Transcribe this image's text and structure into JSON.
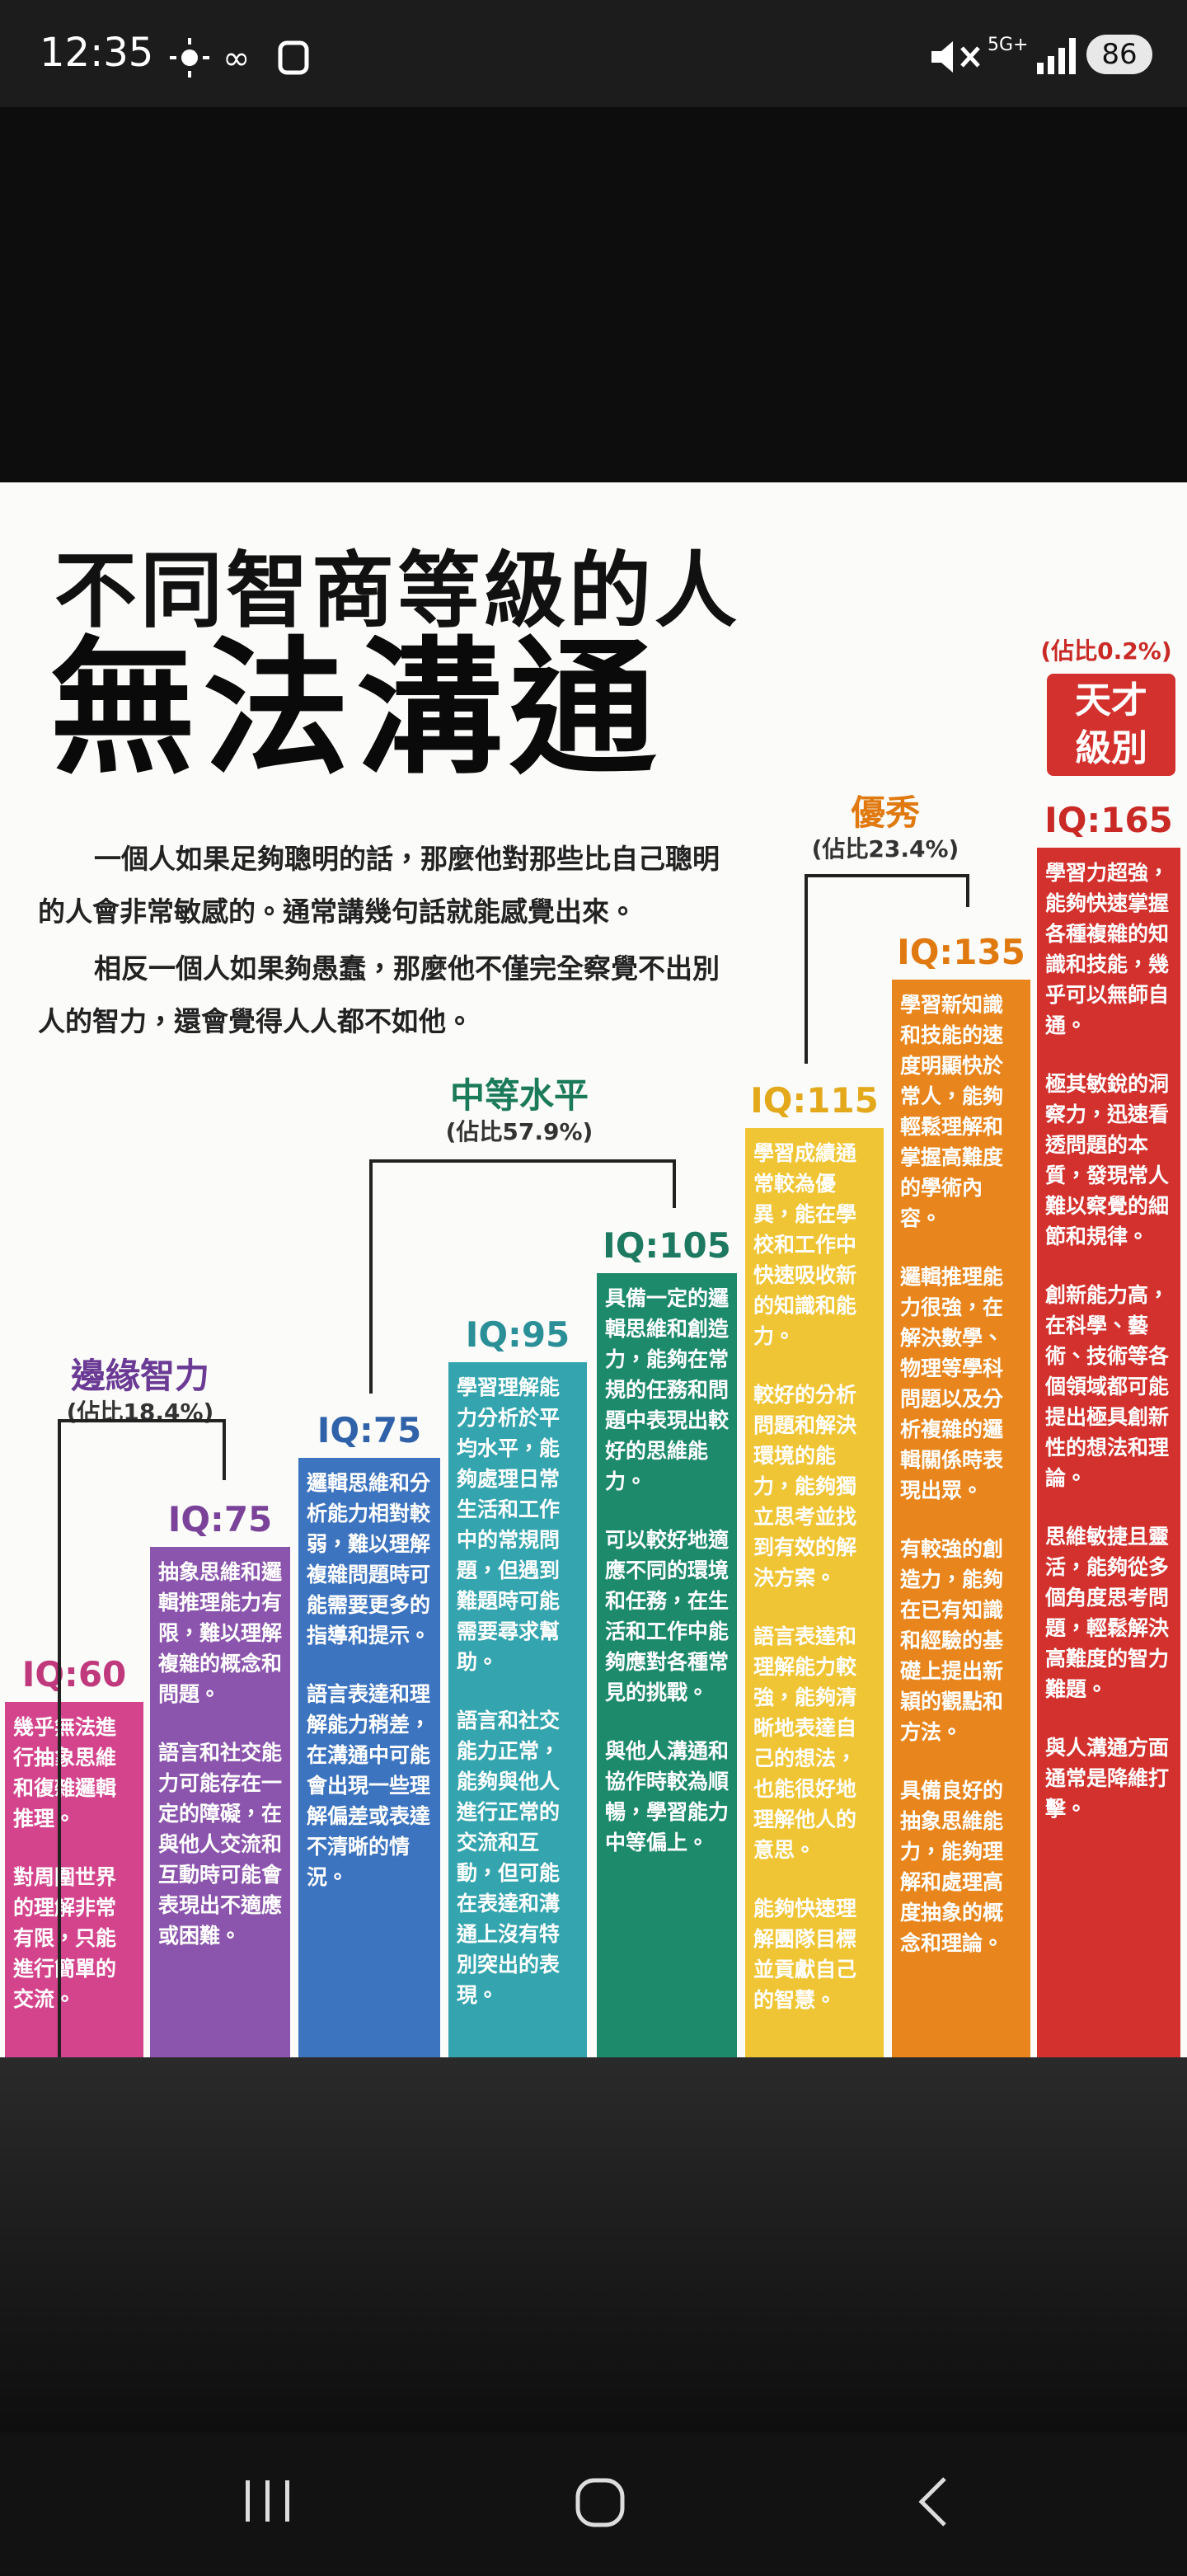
{
  "status_bar": {
    "time": "12:35",
    "network": "5G+",
    "battery": "86"
  },
  "infographic": {
    "title": [
      "不同智商等級的人",
      "無法溝通"
    ],
    "paragraphs": [
      "一個人如果足夠聰明的話，那麼他對那些比自己聰明的人會非常敏感的。通常講幾句話就能感覺出來。",
      "相反一個人如果夠愚蠢，那麼他不僅完全察覺不出別人的智力，還會覺得人人都不如他。"
    ],
    "groups": [
      {
        "name": "邊緣智力",
        "share": "(佔比18.4%)"
      },
      {
        "name": "中等水平",
        "share": "(佔比57.9%)"
      },
      {
        "name": "優秀",
        "share": "(佔比23.4%)"
      },
      {
        "name": "天才級別",
        "share": "(佔比0.2%)"
      }
    ],
    "columns": [
      {
        "label": "IQ:60",
        "texts": [
          "幾乎無法進行抽象思維和復雜邏輯推理。",
          "對周圍世界的理解非常有限，只能進行簡單的交流。"
        ]
      },
      {
        "label": "IQ:75",
        "texts": [
          "抽象思維和邏輯推理能力有限，難以理解複雜的概念和問題。",
          "語言和社交能力可能存在一定的障礙，在與他人交流和互動時可能會表現出不適應或困難。"
        ]
      },
      {
        "label": "IQ:75",
        "texts": [
          "邏輯思維和分析能力相對較弱，難以理解複雜問題時可能需要更多的指導和提示。",
          "語言表達和理解能力稍差，在溝通中可能會出現一些理解偏差或表達不清晰的情況。"
        ]
      },
      {
        "label": "IQ:95",
        "texts": [
          "學習理解能力分析於平均水平，能夠處理日常生活和工作中的常規問題，但遇到難題時可能需要尋求幫助。",
          "語言和社交能力正常，能夠與他人進行正常的交流和互動，但可能在表達和溝通上沒有特別突出的表現。"
        ]
      },
      {
        "label": "IQ:105",
        "texts": [
          "具備一定的邏輯思維和創造力，能夠在常規的任務和問題中表現出較好的思維能力。",
          "可以較好地適應不同的環境和任務，在生活和工作中能夠應對各種常見的挑戰。",
          "與他人溝通和協作時較為順暢，學習能力中等偏上。"
        ]
      },
      {
        "label": "IQ:115",
        "texts": [
          "學習成績通常較為優異，能在學校和工作中快速吸收新的知識和能力。",
          "較好的分析問題和解決環境的能力，能夠獨立思考並找到有效的解決方案。",
          "語言表達和理解能力較強，能夠清晰地表達自己的想法，也能很好地理解他人的意思。",
          "能夠快速理解團隊目標並貢獻自己的智慧。"
        ]
      },
      {
        "label": "IQ:135",
        "texts": [
          "學習新知識和技能的速度明顯快於常人，能夠輕鬆理解和掌握高難度的學術內容。",
          "邏輯推理能力很強，在解決數學、物理等學科問題以及分析複雜的邏輯關係時表現出眾。",
          "有較強的創造力，能夠在已有知識和經驗的基礎上提出新穎的觀點和方法。",
          "具備良好的抽象思維能力，能夠理解和處理高度抽象的概念和理論。"
        ]
      },
      {
        "label": "IQ:165",
        "texts": [
          "學習力超強，能夠快速掌握各種複雜的知識和技能，幾乎可以無師自通。",
          "極其敏銳的洞察力，迅速看透問題的本質，發現常人難以察覺的細節和規律。",
          "創新能力高，在科學、藝術、技術等各個領域都可能提出極具創新性的想法和理論。",
          "思維敏捷且靈活，能夠從多個角度思考問題，輕鬆解決高難度的智力難題。",
          "與人溝通方面通常是降維打擊。"
        ]
      }
    ]
  }
}
